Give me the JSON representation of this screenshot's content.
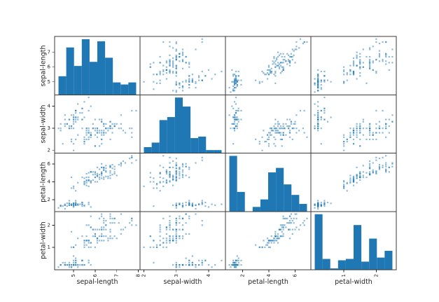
{
  "figure": {
    "background": "#ffffff",
    "spine_color": "#3a3a3a",
    "tick_color": "#262626",
    "text_color": "#262626",
    "marker_color": "#1f77b4",
    "marker_alpha": 0.5,
    "hist_color": "#1f77b4"
  },
  "chart_data": {
    "type": "scatter",
    "subtype": "scatter_matrix",
    "title": "",
    "diagonal": "histogram",
    "n_points": 150,
    "hist_bins": 10,
    "variables": [
      "sepal-length",
      "sepal-width",
      "petal-length",
      "petal-width"
    ],
    "series_order": [
      "sepal_length",
      "sepal_width",
      "petal_length",
      "petal_width"
    ],
    "axes": [
      {
        "var": "sepal-length",
        "range": [
          4.12,
          8.08
        ],
        "x_ticks": [
          5,
          6,
          7,
          8
        ],
        "y_ticks": [
          5,
          6,
          7
        ]
      },
      {
        "var": "sepal-width",
        "range": [
          1.88,
          4.52
        ],
        "x_ticks": [
          2,
          3,
          4
        ],
        "y_ticks": [
          2,
          3,
          4
        ]
      },
      {
        "var": "petal-length",
        "range": [
          0.705,
          7.195
        ],
        "x_ticks": [
          2,
          4,
          6
        ],
        "y_ticks": [
          2,
          4,
          6
        ]
      },
      {
        "var": "petal-width",
        "range": [
          -0.02,
          2.62
        ],
        "x_ticks": [
          1,
          2
        ],
        "y_ticks": [
          1,
          2
        ]
      }
    ],
    "data_ranges": {
      "sepal_length": [
        4.3,
        7.9
      ],
      "sepal_width": [
        2.0,
        4.4
      ],
      "petal_length": [
        1.0,
        6.9
      ],
      "petal_width": [
        0.1,
        2.5
      ]
    },
    "hist_counts": {
      "sepal_length": [
        9,
        23,
        14,
        27,
        16,
        26,
        18,
        6,
        5,
        6
      ],
      "sepal_width": [
        4,
        7,
        22,
        24,
        37,
        31,
        10,
        11,
        2,
        2
      ],
      "petal_length": [
        37,
        13,
        0,
        3,
        8,
        26,
        29,
        18,
        11,
        5
      ],
      "petal_width": [
        41,
        8,
        1,
        7,
        8,
        33,
        6,
        23,
        9,
        14
      ]
    },
    "series": {
      "sepal_length": [
        5.1,
        4.9,
        4.7,
        4.6,
        5.0,
        5.4,
        4.6,
        5.0,
        4.4,
        4.9,
        5.4,
        4.8,
        4.8,
        4.3,
        5.8,
        5.7,
        5.4,
        5.1,
        5.7,
        5.1,
        5.4,
        5.1,
        4.6,
        5.1,
        4.8,
        5.0,
        5.0,
        5.2,
        5.2,
        4.7,
        4.8,
        5.4,
        5.2,
        5.5,
        4.9,
        5.0,
        5.5,
        4.9,
        4.4,
        5.1,
        5.0,
        4.5,
        4.4,
        5.0,
        5.1,
        4.8,
        5.1,
        4.6,
        5.3,
        5.0,
        7.0,
        6.4,
        6.9,
        5.5,
        6.5,
        5.7,
        6.3,
        4.9,
        6.6,
        5.2,
        5.0,
        5.9,
        6.0,
        6.1,
        5.6,
        6.7,
        5.6,
        5.8,
        6.2,
        5.6,
        5.9,
        6.1,
        6.3,
        6.1,
        6.4,
        6.6,
        6.8,
        6.7,
        6.0,
        5.7,
        5.5,
        5.5,
        5.8,
        6.0,
        5.4,
        6.0,
        6.7,
        6.3,
        5.6,
        5.5,
        5.5,
        6.1,
        5.8,
        5.0,
        5.6,
        5.7,
        5.7,
        6.2,
        5.1,
        5.7,
        6.3,
        5.8,
        7.1,
        6.3,
        6.5,
        7.6,
        4.9,
        7.3,
        6.7,
        7.2,
        6.5,
        6.4,
        6.8,
        5.7,
        5.8,
        6.4,
        6.5,
        7.7,
        7.7,
        6.0,
        6.9,
        5.6,
        7.7,
        6.3,
        6.7,
        7.2,
        6.2,
        6.1,
        6.4,
        7.2,
        7.4,
        7.9,
        6.4,
        6.3,
        6.1,
        7.7,
        6.3,
        6.4,
        6.0,
        6.9,
        6.7,
        6.9,
        5.8,
        6.8,
        6.7,
        6.7,
        6.3,
        6.5,
        6.2,
        5.9
      ],
      "sepal_width": [
        3.5,
        3.0,
        3.2,
        3.1,
        3.6,
        3.9,
        3.4,
        3.4,
        2.9,
        3.1,
        3.7,
        3.4,
        3.0,
        3.0,
        4.0,
        4.4,
        3.9,
        3.5,
        3.8,
        3.8,
        3.4,
        3.7,
        3.6,
        3.3,
        3.4,
        3.0,
        3.4,
        3.5,
        3.4,
        3.2,
        3.1,
        3.4,
        4.1,
        4.2,
        3.1,
        3.2,
        3.5,
        3.6,
        3.0,
        3.4,
        3.5,
        2.3,
        3.2,
        3.5,
        3.8,
        3.0,
        3.8,
        3.2,
        3.7,
        3.3,
        3.2,
        3.2,
        3.1,
        2.3,
        2.8,
        2.8,
        3.3,
        2.4,
        2.9,
        2.7,
        2.0,
        3.0,
        2.2,
        2.9,
        2.9,
        3.1,
        3.0,
        2.7,
        2.2,
        2.5,
        3.2,
        2.8,
        2.5,
        2.8,
        2.9,
        3.0,
        2.8,
        3.0,
        2.9,
        2.6,
        2.4,
        2.4,
        2.7,
        2.7,
        3.0,
        3.4,
        3.1,
        2.3,
        3.0,
        2.5,
        2.6,
        3.0,
        2.6,
        2.3,
        2.7,
        3.0,
        2.9,
        2.9,
        2.5,
        2.8,
        3.3,
        2.7,
        3.0,
        2.9,
        3.0,
        3.0,
        2.5,
        2.9,
        2.5,
        3.6,
        3.2,
        2.7,
        3.0,
        2.5,
        2.8,
        3.2,
        3.0,
        3.8,
        2.6,
        2.2,
        3.2,
        2.8,
        2.8,
        2.7,
        3.3,
        3.2,
        2.8,
        3.0,
        2.8,
        3.0,
        2.8,
        3.8,
        2.8,
        2.8,
        2.6,
        3.0,
        3.4,
        3.1,
        3.0,
        3.1,
        3.1,
        3.1,
        2.7,
        3.2,
        3.3,
        3.0,
        2.5,
        3.0,
        3.4,
        3.0
      ],
      "petal_length": [
        1.4,
        1.4,
        1.3,
        1.5,
        1.4,
        1.7,
        1.4,
        1.5,
        1.4,
        1.5,
        1.5,
        1.6,
        1.4,
        1.1,
        1.2,
        1.5,
        1.3,
        1.4,
        1.7,
        1.5,
        1.7,
        1.5,
        1.0,
        1.7,
        1.9,
        1.6,
        1.6,
        1.5,
        1.4,
        1.6,
        1.6,
        1.5,
        1.5,
        1.4,
        1.5,
        1.2,
        1.3,
        1.4,
        1.3,
        1.5,
        1.3,
        1.3,
        1.3,
        1.6,
        1.9,
        1.4,
        1.6,
        1.4,
        1.5,
        1.4,
        4.7,
        4.5,
        4.9,
        4.0,
        4.6,
        4.5,
        4.7,
        3.3,
        4.6,
        3.9,
        3.5,
        4.2,
        4.0,
        4.7,
        3.6,
        4.4,
        4.5,
        4.1,
        4.5,
        3.9,
        4.8,
        4.0,
        4.9,
        4.7,
        4.3,
        4.4,
        4.8,
        5.0,
        4.5,
        3.5,
        3.8,
        3.7,
        3.9,
        5.1,
        4.5,
        4.5,
        4.7,
        4.4,
        4.1,
        4.0,
        4.4,
        4.6,
        4.0,
        3.3,
        4.2,
        4.2,
        4.2,
        4.3,
        3.0,
        4.1,
        6.0,
        5.1,
        5.9,
        5.6,
        5.8,
        6.6,
        4.5,
        6.3,
        5.8,
        6.1,
        5.1,
        5.3,
        5.5,
        5.0,
        5.1,
        5.3,
        5.5,
        6.7,
        6.9,
        5.0,
        5.7,
        4.9,
        6.7,
        4.9,
        5.7,
        6.0,
        4.8,
        4.9,
        5.6,
        5.8,
        6.1,
        6.4,
        5.6,
        5.1,
        5.6,
        6.1,
        5.6,
        5.5,
        4.8,
        5.4,
        5.6,
        5.1,
        5.1,
        5.9,
        5.7,
        5.2,
        5.0,
        5.2,
        5.4,
        5.1
      ],
      "petal_width": [
        0.2,
        0.2,
        0.2,
        0.2,
        0.2,
        0.4,
        0.3,
        0.2,
        0.2,
        0.1,
        0.2,
        0.2,
        0.1,
        0.1,
        0.2,
        0.4,
        0.4,
        0.3,
        0.3,
        0.3,
        0.2,
        0.4,
        0.2,
        0.5,
        0.2,
        0.2,
        0.4,
        0.2,
        0.2,
        0.2,
        0.2,
        0.4,
        0.1,
        0.2,
        0.2,
        0.2,
        0.2,
        0.1,
        0.2,
        0.2,
        0.3,
        0.3,
        0.2,
        0.6,
        0.4,
        0.3,
        0.2,
        0.2,
        0.2,
        0.2,
        1.4,
        1.5,
        1.5,
        1.3,
        1.5,
        1.3,
        1.6,
        1.0,
        1.3,
        1.4,
        1.0,
        1.5,
        1.0,
        1.4,
        1.3,
        1.4,
        1.5,
        1.0,
        1.5,
        1.1,
        1.8,
        1.3,
        1.5,
        1.2,
        1.3,
        1.4,
        1.4,
        1.7,
        1.5,
        1.0,
        1.1,
        1.0,
        1.2,
        1.6,
        1.5,
        1.6,
        1.5,
        1.3,
        1.3,
        1.3,
        1.2,
        1.4,
        1.2,
        1.0,
        1.3,
        1.2,
        1.3,
        1.3,
        1.1,
        1.3,
        2.5,
        1.9,
        2.1,
        1.8,
        2.2,
        2.1,
        1.7,
        1.8,
        1.8,
        2.5,
        2.0,
        1.9,
        2.1,
        2.0,
        2.4,
        2.3,
        1.8,
        2.2,
        2.3,
        1.5,
        2.3,
        2.0,
        2.0,
        1.8,
        2.1,
        1.8,
        1.8,
        1.8,
        2.1,
        1.6,
        1.9,
        2.0,
        2.2,
        1.5,
        1.4,
        2.3,
        2.4,
        1.8,
        1.8,
        2.1,
        2.4,
        2.3,
        1.9,
        2.3,
        2.5,
        2.3,
        1.9,
        2.0,
        2.3,
        1.8
      ]
    }
  }
}
